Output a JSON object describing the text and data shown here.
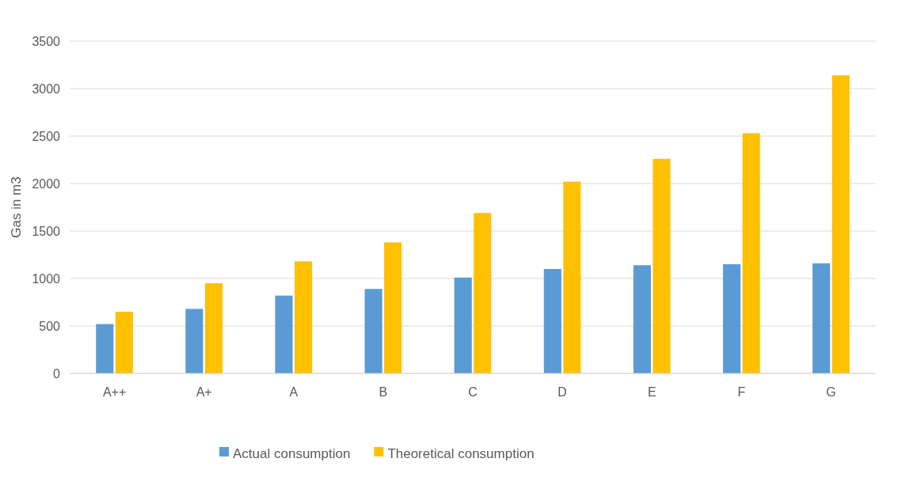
{
  "chart_data": {
    "type": "bar",
    "ylabel": "Gas in m3",
    "categories": [
      "A++",
      "A+",
      "A",
      "B",
      "C",
      "D",
      "E",
      "F",
      "G"
    ],
    "series": [
      {
        "name": "Actual consumption",
        "color": "#5b9bd5",
        "values": [
          520,
          680,
          820,
          890,
          1010,
          1100,
          1140,
          1150,
          1160
        ]
      },
      {
        "name": "Theoretical consumption",
        "color": "#ffc000",
        "values": [
          650,
          950,
          1180,
          1380,
          1690,
          2020,
          2260,
          2530,
          3140
        ]
      }
    ],
    "ylim": [
      0,
      3500
    ],
    "yticks": [
      0,
      500,
      1000,
      1500,
      2000,
      2500,
      3000,
      3500
    ],
    "grid": "y",
    "legend": "bottom"
  }
}
